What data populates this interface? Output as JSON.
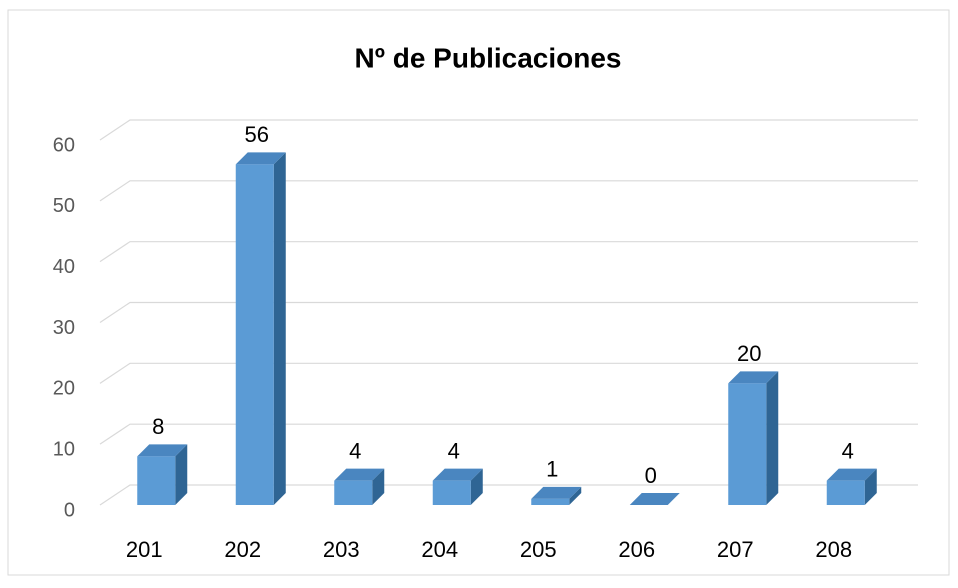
{
  "chart_data": {
    "type": "bar3d",
    "title": "Nº de Publicaciones",
    "categories": [
      "201",
      "202",
      "203",
      "204",
      "205",
      "206",
      "207",
      "208"
    ],
    "values": [
      8,
      56,
      4,
      4,
      1,
      0,
      20,
      4
    ],
    "color": "#5b9bd5",
    "ylim": [
      0,
      60
    ],
    "yticks": [
      0,
      10,
      20,
      30,
      40,
      50,
      60
    ],
    "grid": true
  }
}
